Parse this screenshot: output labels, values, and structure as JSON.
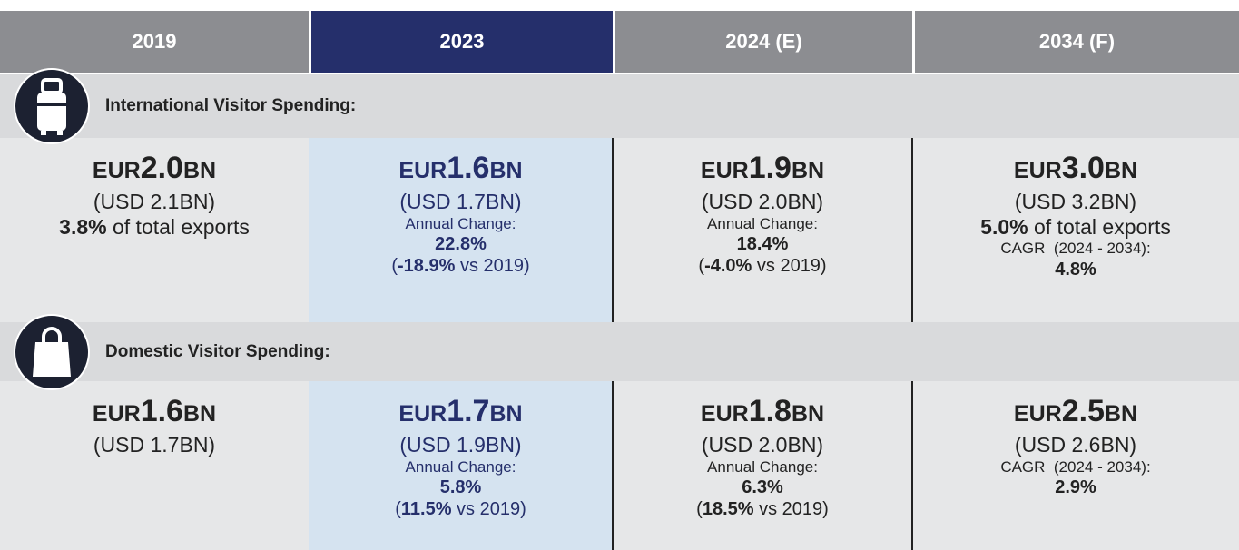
{
  "header": {
    "columns": [
      "2019",
      "2023",
      "2024 (E)",
      "2034 (F)"
    ],
    "highlight": 1
  },
  "sections": [
    {
      "title": "International Visitor Spending:",
      "icon": "suitcase",
      "cells": [
        {
          "amount": [
            {
              "text": "EUR",
              "style": "unit"
            },
            {
              "text": "2.0",
              "style": "big"
            },
            {
              "text": "BN",
              "style": "unit"
            }
          ],
          "lines": [
            {
              "size": "large",
              "parts": [
                {
                  "text": "(USD 2.1BN)"
                }
              ]
            },
            {
              "size": "large",
              "parts": [
                {
                  "text": "3.8%",
                  "bold": true
                },
                {
                  "text": " of total exports"
                }
              ]
            }
          ]
        },
        {
          "amount": [
            {
              "text": "EUR",
              "style": "unit"
            },
            {
              "text": "1.6",
              "style": "big"
            },
            {
              "text": "BN",
              "style": "unit"
            }
          ],
          "lines": [
            {
              "size": "large",
              "parts": [
                {
                  "text": "(USD 1.7BN)"
                }
              ]
            },
            {
              "size": "small",
              "parts": [
                {
                  "text": "Annual Change:"
                }
              ]
            },
            {
              "size": "medium",
              "parts": [
                {
                  "text": "22.8%",
                  "bold": true
                }
              ]
            },
            {
              "size": "medium",
              "parts": [
                {
                  "text": "("
                },
                {
                  "text": "-18.9%",
                  "bold": true
                },
                {
                  "text": " vs 2019)"
                }
              ]
            }
          ]
        },
        {
          "amount": [
            {
              "text": "EUR",
              "style": "unit"
            },
            {
              "text": "1.9",
              "style": "big"
            },
            {
              "text": "BN",
              "style": "unit"
            }
          ],
          "lines": [
            {
              "size": "large",
              "parts": [
                {
                  "text": "(USD 2.0BN)"
                }
              ]
            },
            {
              "size": "small",
              "parts": [
                {
                  "text": "Annual Change:"
                }
              ]
            },
            {
              "size": "medium",
              "parts": [
                {
                  "text": "18.4%",
                  "bold": true
                }
              ]
            },
            {
              "size": "medium",
              "parts": [
                {
                  "text": "("
                },
                {
                  "text": "-4.0%",
                  "bold": true
                },
                {
                  "text": " vs 2019)"
                }
              ]
            }
          ]
        },
        {
          "amount": [
            {
              "text": "EUR",
              "style": "unit"
            },
            {
              "text": "3.0",
              "style": "big"
            },
            {
              "text": "BN",
              "style": "unit"
            }
          ],
          "lines": [
            {
              "size": "large",
              "parts": [
                {
                  "text": "(USD 3.2BN)"
                }
              ]
            },
            {
              "size": "large",
              "parts": [
                {
                  "text": "5.0%",
                  "bold": true
                },
                {
                  "text": " of total exports"
                }
              ]
            },
            {
              "size": "small",
              "parts": [
                {
                  "text": "CAGR  (2024 - 2034):"
                }
              ]
            },
            {
              "size": "medium",
              "parts": [
                {
                  "text": "4.8%",
                  "bold": true
                }
              ]
            }
          ]
        }
      ]
    },
    {
      "title": "Domestic Visitor Spending:",
      "icon": "bag",
      "cells": [
        {
          "amount": [
            {
              "text": "EUR",
              "style": "unit"
            },
            {
              "text": "1.6",
              "style": "big"
            },
            {
              "text": "BN",
              "style": "unit"
            }
          ],
          "lines": [
            {
              "size": "large",
              "parts": [
                {
                  "text": "(USD 1.7BN)"
                }
              ]
            }
          ]
        },
        {
          "amount": [
            {
              "text": "EUR",
              "style": "unit"
            },
            {
              "text": "1.7",
              "style": "big"
            },
            {
              "text": "BN",
              "style": "unit"
            }
          ],
          "lines": [
            {
              "size": "large",
              "parts": [
                {
                  "text": "(USD 1.9BN)"
                }
              ]
            },
            {
              "size": "small",
              "parts": [
                {
                  "text": "Annual Change:"
                }
              ]
            },
            {
              "size": "medium",
              "parts": [
                {
                  "text": "5.8%",
                  "bold": true
                }
              ]
            },
            {
              "size": "medium",
              "parts": [
                {
                  "text": "("
                },
                {
                  "text": "11.5%",
                  "bold": true
                },
                {
                  "text": " vs 2019)"
                }
              ]
            }
          ]
        },
        {
          "amount": [
            {
              "text": "EUR",
              "style": "unit"
            },
            {
              "text": "1.8",
              "style": "big"
            },
            {
              "text": "BN",
              "style": "unit"
            }
          ],
          "lines": [
            {
              "size": "large",
              "parts": [
                {
                  "text": "(USD 2.0BN)"
                }
              ]
            },
            {
              "size": "small",
              "parts": [
                {
                  "text": "Annual Change:"
                }
              ]
            },
            {
              "size": "medium",
              "parts": [
                {
                  "text": "6.3%",
                  "bold": true
                }
              ]
            },
            {
              "size": "medium",
              "parts": [
                {
                  "text": "("
                },
                {
                  "text": "18.5%",
                  "bold": true
                },
                {
                  "text": " vs 2019)"
                }
              ]
            }
          ]
        },
        {
          "amount": [
            {
              "text": "EUR",
              "style": "unit"
            },
            {
              "text": "2.5",
              "style": "big"
            },
            {
              "text": "BN",
              "style": "unit"
            }
          ],
          "lines": [
            {
              "size": "large",
              "parts": [
                {
                  "text": "(USD 2.6BN)"
                }
              ]
            },
            {
              "size": "small",
              "parts": [
                {
                  "text": "CAGR  (2024 - 2034):"
                }
              ]
            },
            {
              "size": "medium",
              "parts": [
                {
                  "text": "2.9%",
                  "bold": true
                }
              ]
            }
          ]
        }
      ]
    }
  ]
}
